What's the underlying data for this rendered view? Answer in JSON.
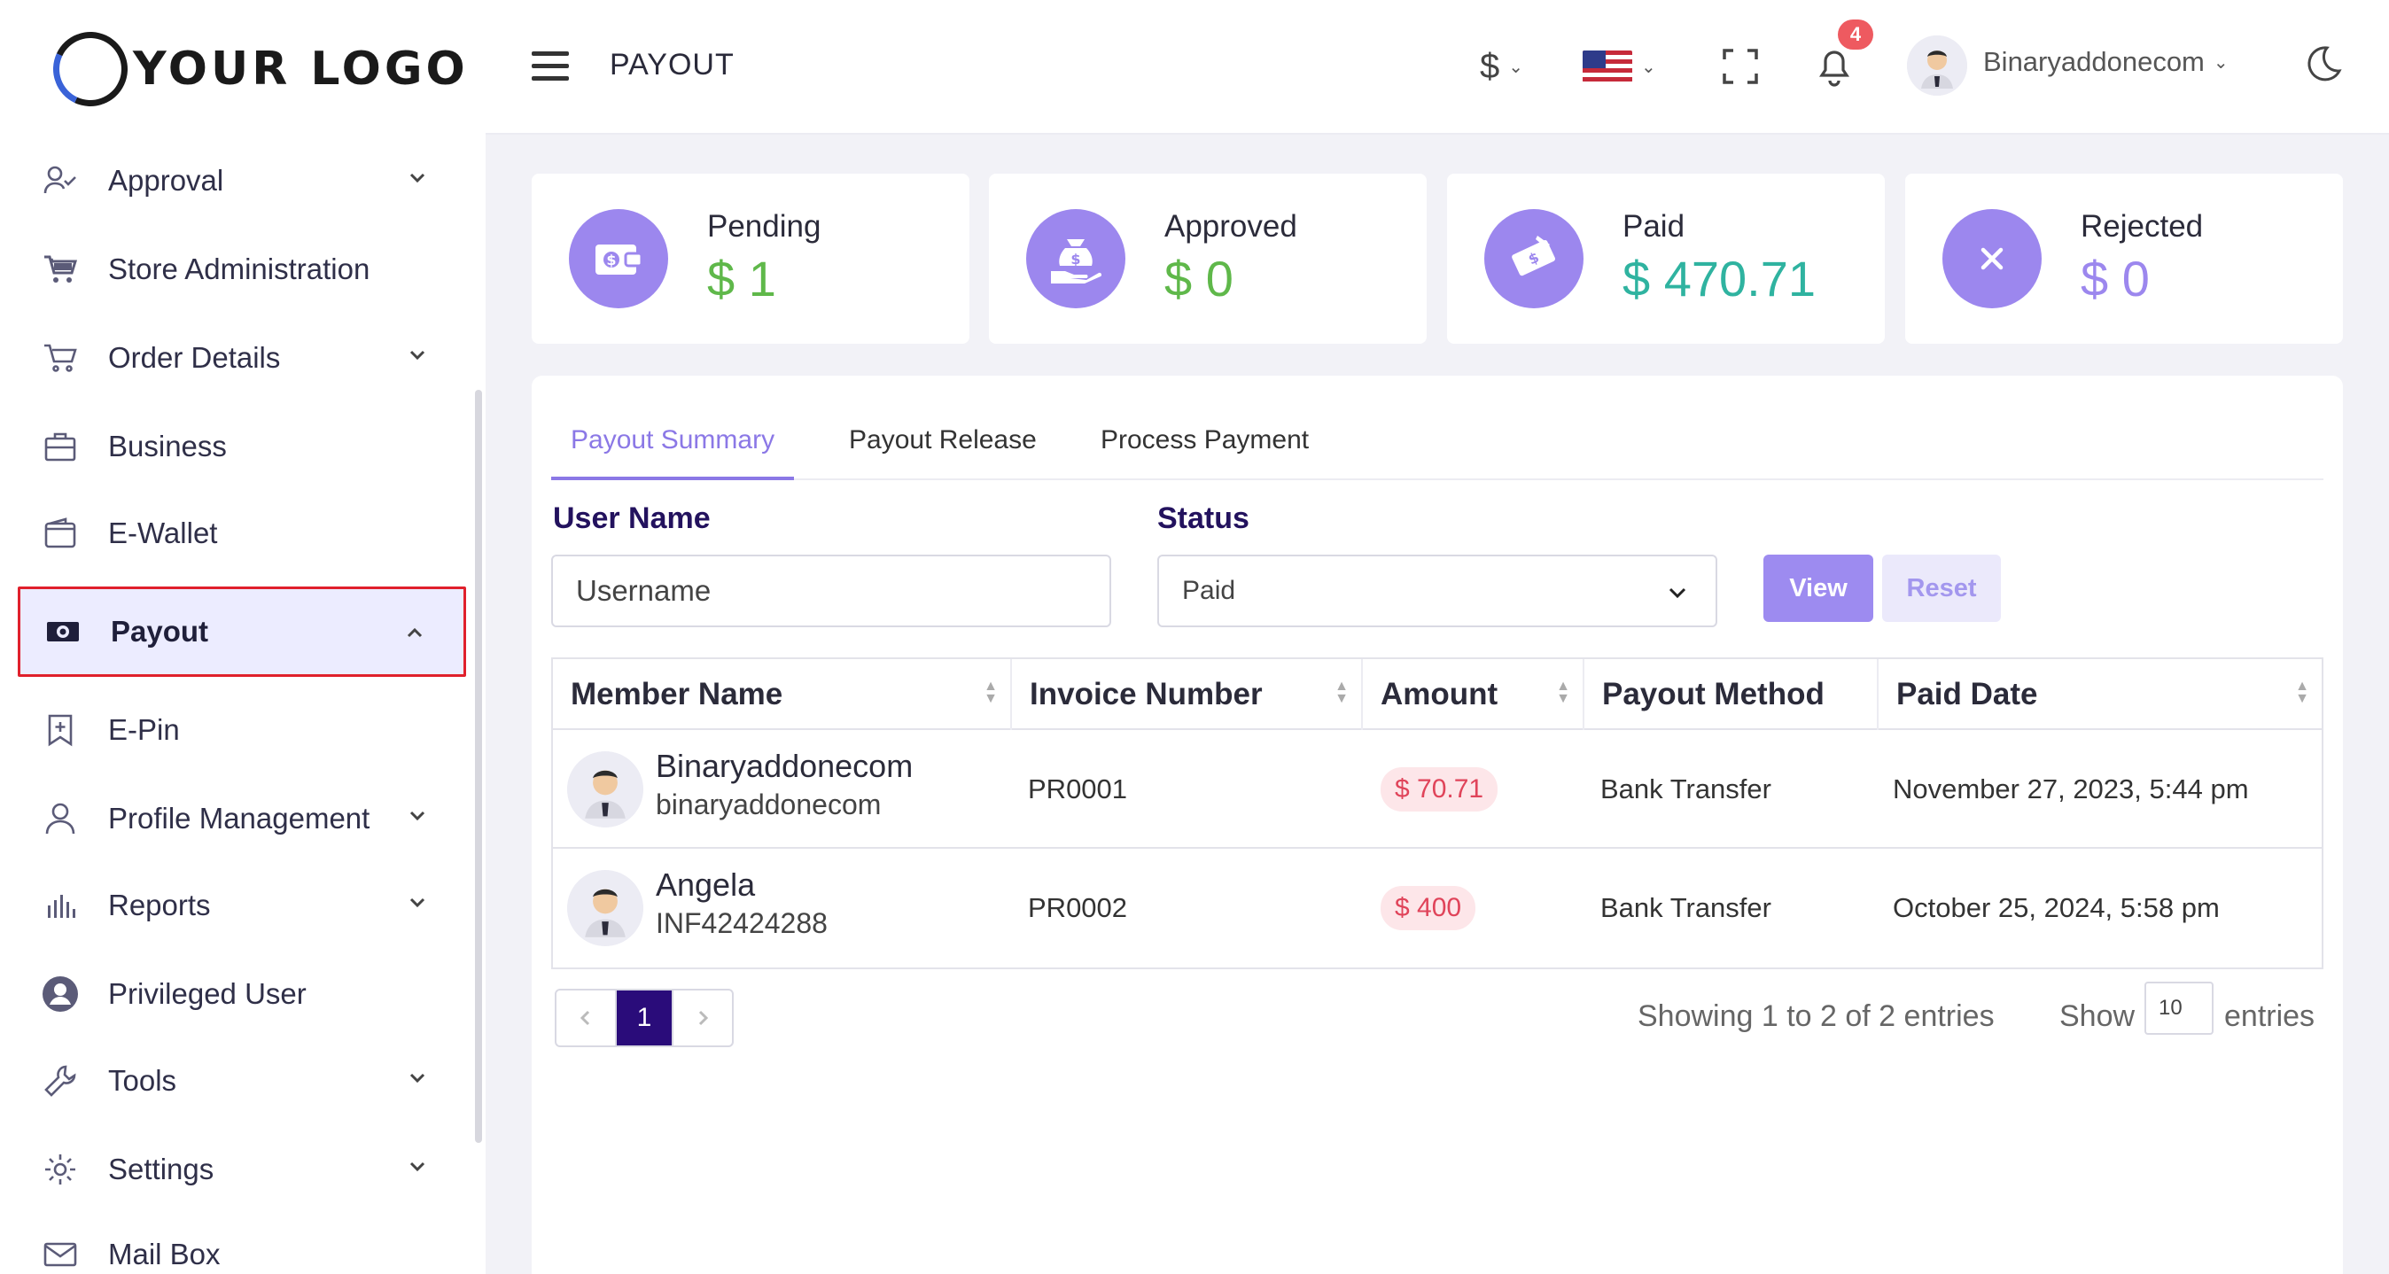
{
  "logo": {
    "text": "YOUR LOGO"
  },
  "header": {
    "title": "PAYOUT",
    "currency": "$",
    "notification_count": "4",
    "user_name": "Binaryaddonecom"
  },
  "sidebar": {
    "items": [
      {
        "label": "Approval",
        "icon": "user-check-icon",
        "has_chevron": true
      },
      {
        "label": "Store Administration",
        "icon": "cart-icon",
        "has_chevron": false
      },
      {
        "label": "Order Details",
        "icon": "shopping-cart-icon",
        "has_chevron": true
      },
      {
        "label": "Business",
        "icon": "briefcase-icon",
        "has_chevron": false
      },
      {
        "label": "E-Wallet",
        "icon": "wallet-icon",
        "has_chevron": false
      },
      {
        "label": "Payout",
        "icon": "money-icon",
        "has_chevron": true,
        "active": true
      },
      {
        "label": "E-Pin",
        "icon": "bookmark-pin-icon",
        "has_chevron": false
      },
      {
        "label": "Profile Management",
        "icon": "user-icon",
        "has_chevron": true
      },
      {
        "label": "Reports",
        "icon": "bar-chart-icon",
        "has_chevron": true
      },
      {
        "label": "Privileged User",
        "icon": "user-circle-icon",
        "has_chevron": false
      },
      {
        "label": "Tools",
        "icon": "wrench-icon",
        "has_chevron": true
      },
      {
        "label": "Settings",
        "icon": "gear-icon",
        "has_chevron": true
      },
      {
        "label": "Mail Box",
        "icon": "mail-icon",
        "has_chevron": false
      }
    ]
  },
  "stats": {
    "pending": {
      "title": "Pending",
      "value": "$ 1"
    },
    "approved": {
      "title": "Approved",
      "value": "$ 0"
    },
    "paid": {
      "title": "Paid",
      "value": "$ 470.71"
    },
    "rejected": {
      "title": "Rejected",
      "value": "$ 0"
    }
  },
  "tabs": [
    "Payout Summary",
    "Payout Release",
    "Process Payment"
  ],
  "filters": {
    "username_label": "User Name",
    "username_placeholder": "Username",
    "status_label": "Status",
    "status_value": "Paid",
    "view_label": "View",
    "reset_label": "Reset"
  },
  "table": {
    "headers": [
      "Member Name",
      "Invoice Number",
      "Amount",
      "Payout Method",
      "Paid Date"
    ],
    "rows": [
      {
        "name": "Binaryaddonecom",
        "sub": "binaryaddonecom",
        "invoice": "PR0001",
        "amount": "$ 70.71",
        "method": "Bank Transfer",
        "date": "November 27, 2023, 5:44 pm"
      },
      {
        "name": "Angela",
        "sub": "INF42424288",
        "invoice": "PR0002",
        "amount": "$ 400",
        "method": "Bank Transfer",
        "date": "October 25, 2024, 5:58 pm"
      }
    ]
  },
  "pagination": {
    "current_page": "1",
    "showing": "Showing 1 to 2 of 2 entries",
    "show_label": "Show",
    "page_size": "10",
    "entries_label": "entries"
  },
  "colors": {
    "accent": "#9c87ee",
    "pending_value": "#5fb84a",
    "paid_value": "#2fb3a0",
    "amount_pill_text": "#e0445a",
    "active_border": "#e0202c",
    "page_active": "#2a0c7a"
  }
}
